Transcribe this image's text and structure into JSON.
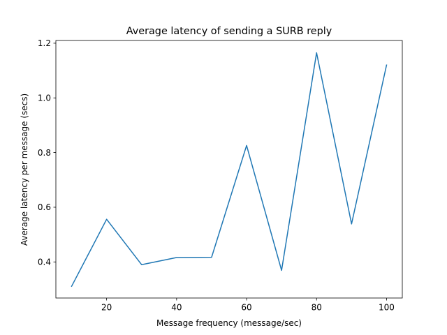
{
  "chart_data": {
    "type": "line",
    "title": "Average latency of sending a SURB reply",
    "xlabel": "Message frequency (message/sec)",
    "ylabel": "Average latency per message (secs)",
    "xlim": [
      5.5,
      104.5
    ],
    "ylim": [
      0.268,
      1.21
    ],
    "x_ticks": [
      20,
      40,
      60,
      80,
      100
    ],
    "x_tick_labels": [
      "20",
      "40",
      "60",
      "80",
      "100"
    ],
    "y_ticks": [
      0.4,
      0.6,
      0.8,
      1.0,
      1.2
    ],
    "y_tick_labels": [
      "0.4",
      "0.6",
      "0.8",
      "1.0",
      "1.2"
    ],
    "grid": false,
    "legend": "none",
    "series": [
      {
        "color": "#1f77b4",
        "x": [
          10,
          20,
          30,
          40,
          50,
          60,
          70,
          80,
          90,
          100
        ],
        "y": [
          0.311,
          0.556,
          0.39,
          0.416,
          0.417,
          0.826,
          0.369,
          1.165,
          0.539,
          1.12
        ]
      }
    ]
  }
}
